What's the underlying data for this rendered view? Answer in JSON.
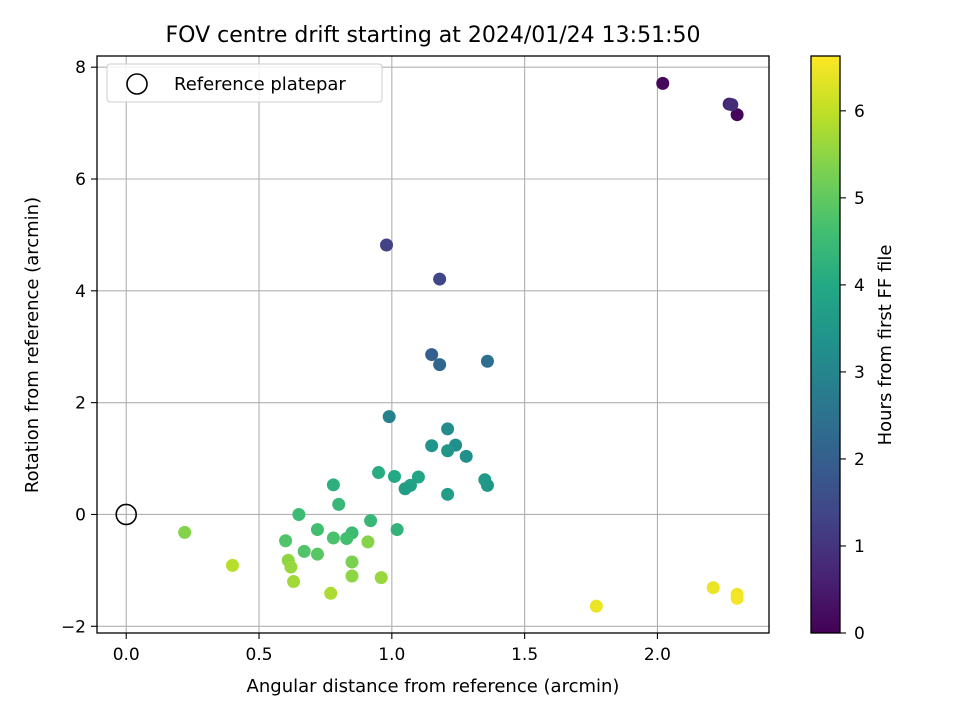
{
  "chart_data": {
    "type": "scatter",
    "title": "FOV centre drift starting at 2024/01/24 13:51:50",
    "xlabel": "Angular distance from reference (arcmin)",
    "ylabel": "Rotation from reference (arcmin)",
    "xlim": [
      -0.11,
      2.42
    ],
    "ylim": [
      -2.12,
      8.2
    ],
    "xticks": [
      0.0,
      0.5,
      1.0,
      1.5,
      2.0
    ],
    "xtick_labels": [
      "0.0",
      "0.5",
      "1.0",
      "1.5",
      "2.0"
    ],
    "yticks": [
      -2,
      0,
      2,
      4,
      6,
      8
    ],
    "ytick_labels": [
      "−2",
      "0",
      "2",
      "4",
      "6",
      "8"
    ],
    "grid": true,
    "legend": {
      "placement": "top-left",
      "entries": [
        {
          "label": "Reference platepar",
          "marker": "open-circle"
        }
      ]
    },
    "reference_point": {
      "x": 0.0,
      "y": 0.0
    },
    "colorbar": {
      "label": "Hours from first FF file",
      "colormap": "viridis",
      "range": [
        0,
        6.63
      ],
      "ticks": [
        0,
        1,
        2,
        3,
        4,
        5,
        6
      ],
      "tick_labels": [
        "0",
        "1",
        "2",
        "3",
        "4",
        "5",
        "6"
      ]
    },
    "points": [
      {
        "x": 2.02,
        "y": 7.71,
        "c": 0.15
      },
      {
        "x": 2.3,
        "y": 7.15,
        "c": 0.1
      },
      {
        "x": 2.27,
        "y": 7.34,
        "c": 0.6
      },
      {
        "x": 2.28,
        "y": 7.33,
        "c": 0.85
      },
      {
        "x": 0.98,
        "y": 4.82,
        "c": 1.3
      },
      {
        "x": 1.18,
        "y": 4.21,
        "c": 1.4
      },
      {
        "x": 1.15,
        "y": 2.86,
        "c": 2.0
      },
      {
        "x": 1.18,
        "y": 2.68,
        "c": 2.2
      },
      {
        "x": 1.36,
        "y": 2.74,
        "c": 2.4
      },
      {
        "x": 0.99,
        "y": 1.75,
        "c": 2.9
      },
      {
        "x": 1.21,
        "y": 1.53,
        "c": 3.2
      },
      {
        "x": 1.15,
        "y": 1.23,
        "c": 3.4
      },
      {
        "x": 1.24,
        "y": 1.24,
        "c": 3.3
      },
      {
        "x": 1.21,
        "y": 1.14,
        "c": 3.5
      },
      {
        "x": 1.28,
        "y": 1.04,
        "c": 3.3
      },
      {
        "x": 1.35,
        "y": 0.62,
        "c": 3.6
      },
      {
        "x": 1.36,
        "y": 0.52,
        "c": 3.5
      },
      {
        "x": 1.21,
        "y": 0.36,
        "c": 3.7
      },
      {
        "x": 1.1,
        "y": 0.67,
        "c": 3.9
      },
      {
        "x": 1.07,
        "y": 0.52,
        "c": 3.8
      },
      {
        "x": 1.05,
        "y": 0.46,
        "c": 3.7
      },
      {
        "x": 1.01,
        "y": 0.68,
        "c": 4.0
      },
      {
        "x": 0.95,
        "y": 0.75,
        "c": 4.1
      },
      {
        "x": 0.78,
        "y": 0.53,
        "c": 4.2
      },
      {
        "x": 0.8,
        "y": 0.18,
        "c": 4.4
      },
      {
        "x": 1.02,
        "y": -0.27,
        "c": 4.3
      },
      {
        "x": 0.92,
        "y": -0.11,
        "c": 4.4
      },
      {
        "x": 0.65,
        "y": 0.0,
        "c": 4.5
      },
      {
        "x": 0.72,
        "y": -0.27,
        "c": 4.6
      },
      {
        "x": 0.85,
        "y": -0.33,
        "c": 4.5
      },
      {
        "x": 0.83,
        "y": -0.43,
        "c": 4.6
      },
      {
        "x": 0.78,
        "y": -0.42,
        "c": 4.7
      },
      {
        "x": 0.6,
        "y": -0.47,
        "c": 4.8
      },
      {
        "x": 0.67,
        "y": -0.66,
        "c": 4.8
      },
      {
        "x": 0.72,
        "y": -0.71,
        "c": 4.9
      },
      {
        "x": 0.91,
        "y": -0.49,
        "c": 5.4
      },
      {
        "x": 0.85,
        "y": -0.85,
        "c": 5.3
      },
      {
        "x": 0.61,
        "y": -0.82,
        "c": 5.5
      },
      {
        "x": 0.62,
        "y": -0.94,
        "c": 5.6
      },
      {
        "x": 0.85,
        "y": -1.1,
        "c": 5.5
      },
      {
        "x": 0.96,
        "y": -1.13,
        "c": 5.6
      },
      {
        "x": 0.63,
        "y": -1.2,
        "c": 5.7
      },
      {
        "x": 0.77,
        "y": -1.41,
        "c": 5.8
      },
      {
        "x": 0.22,
        "y": -0.32,
        "c": 5.4
      },
      {
        "x": 0.4,
        "y": -0.91,
        "c": 5.9
      },
      {
        "x": 1.77,
        "y": -1.64,
        "c": 6.45
      },
      {
        "x": 2.21,
        "y": -1.31,
        "c": 6.45
      },
      {
        "x": 2.3,
        "y": -1.43,
        "c": 6.5
      },
      {
        "x": 2.3,
        "y": -1.5,
        "c": 6.55
      }
    ]
  }
}
